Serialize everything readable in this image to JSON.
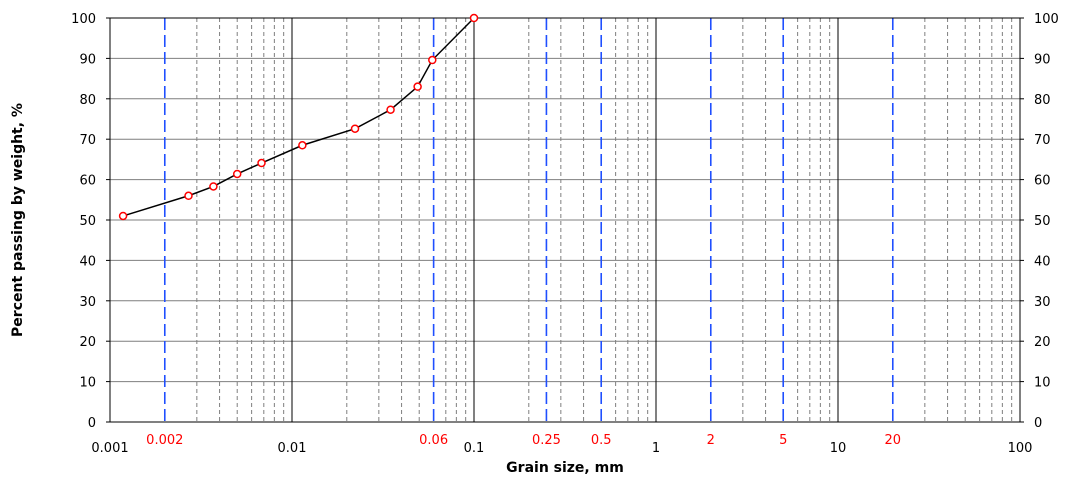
{
  "chart_data": {
    "type": "line",
    "xlabel": "Grain size, mm",
    "ylabel": "Percent passing by weight, %",
    "xscale": "log",
    "xlim": [
      0.001,
      100
    ],
    "ylim": [
      0,
      100
    ],
    "grid": true,
    "y_ticks": [
      "0",
      "10",
      "20",
      "30",
      "40",
      "50",
      "60",
      "70",
      "80",
      "90",
      "100"
    ],
    "x_major_ticks": [
      {
        "value": 0.001,
        "label": "0.001"
      },
      {
        "value": 0.01,
        "label": "0.01"
      },
      {
        "value": 0.1,
        "label": "0.1"
      },
      {
        "value": 1,
        "label": "1"
      },
      {
        "value": 10,
        "label": "10"
      },
      {
        "value": 100,
        "label": "100"
      }
    ],
    "x_special_ticks": [
      {
        "value": 0.002,
        "label": "0.002"
      },
      {
        "value": 0.06,
        "label": "0.06"
      },
      {
        "value": 0.25,
        "label": "0.25"
      },
      {
        "value": 0.5,
        "label": "0.5"
      },
      {
        "value": 2,
        "label": "2"
      },
      {
        "value": 5,
        "label": "5"
      },
      {
        "value": 20,
        "label": "20"
      }
    ],
    "series": [
      {
        "x": [
          0.00118,
          0.0027,
          0.0037,
          0.005,
          0.0068,
          0.0114,
          0.0222,
          0.0348,
          0.049,
          0.059,
          0.1
        ],
        "y": [
          51,
          56,
          58.3,
          61.4,
          64.1,
          68.5,
          72.6,
          77.3,
          83.0,
          89.6,
          100
        ]
      }
    ],
    "colors": {
      "line": "#000000",
      "marker_edge": "#ff0000",
      "marker_fill": "#ffffff",
      "special_lines": "#1f4fff",
      "special_labels": "#ff0000",
      "major_grid": "#000000",
      "minor_grid": "#7f7f7f"
    }
  }
}
